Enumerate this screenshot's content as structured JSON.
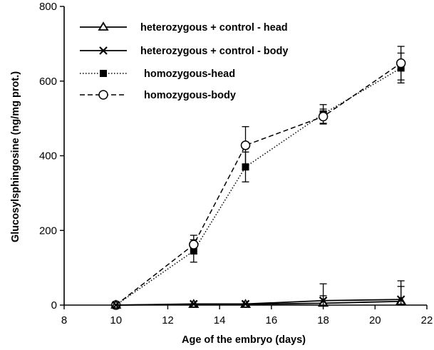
{
  "chart_data": {
    "type": "line",
    "title": "",
    "xlabel": "Age of the embryo (days)",
    "ylabel": "Glucosylsphingosine (ng/mg prot.)",
    "xlim": [
      8,
      22
    ],
    "ylim": [
      0,
      800
    ],
    "x_ticks": [
      8,
      10,
      12,
      14,
      16,
      18,
      20,
      22
    ],
    "y_ticks": [
      0,
      200,
      400,
      600,
      800
    ],
    "grid": false,
    "legend_position": "top-left",
    "series": [
      {
        "name": "heterozygous + control - head",
        "marker": "open-triangle",
        "line_style": "solid",
        "x": [
          10,
          13,
          15,
          18,
          21
        ],
        "y": [
          0,
          2,
          2,
          5,
          10
        ],
        "error": [
          0,
          0,
          0,
          20,
          40
        ]
      },
      {
        "name": "heterozygous + control - body",
        "marker": "cross",
        "line_style": "solid",
        "x": [
          10,
          13,
          15,
          18,
          21
        ],
        "y": [
          0,
          3,
          3,
          12,
          15
        ],
        "error": [
          0,
          0,
          0,
          45,
          50
        ]
      },
      {
        "name": "homozygous-head",
        "marker": "filled-square",
        "line_style": "dotted",
        "x": [
          10,
          13,
          15,
          18,
          21
        ],
        "y": [
          0,
          145,
          370,
          512,
          635
        ],
        "error": [
          0,
          30,
          40,
          25,
          40
        ]
      },
      {
        "name": "homozygous-body",
        "marker": "open-circle",
        "line_style": "dashed",
        "x": [
          10,
          13,
          15,
          18,
          21
        ],
        "y": [
          0,
          162,
          428,
          505,
          648
        ],
        "error": [
          0,
          25,
          50,
          20,
          45
        ]
      }
    ]
  }
}
